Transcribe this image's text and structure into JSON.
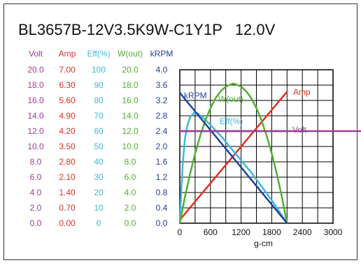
{
  "title": "BL3657B-12V3.5K9W-C1Y1P   12.0V",
  "columns": [
    {
      "key": "volt",
      "header": "Volt",
      "color": "#9b3d9b",
      "ticks": [
        "20.0",
        "18.0",
        "16.0",
        "14.0",
        "12.0",
        "10.0",
        "8.0",
        "6.0",
        "4.0",
        "2.0",
        "0.0"
      ]
    },
    {
      "key": "amp",
      "header": "Amp",
      "color": "#e03020",
      "ticks": [
        "7.00",
        "6.30",
        "5.60",
        "4.90",
        "4.20",
        "3.50",
        "2.80",
        "2.10",
        "1.40",
        "0.70",
        "0.00"
      ]
    },
    {
      "key": "eff",
      "header": "Eff(%)",
      "color": "#40b8d8",
      "ticks": [
        "100",
        "90",
        "80",
        "70",
        "60",
        "50",
        "40",
        "30",
        "20",
        "10",
        "0"
      ]
    },
    {
      "key": "wout",
      "header": "W(out)",
      "color": "#50b030",
      "ticks": [
        "20.0",
        "18.0",
        "16.0",
        "14.0",
        "12.0",
        "10.0",
        "8.0",
        "6.0",
        "4.0",
        "2.0",
        "0.0"
      ]
    },
    {
      "key": "krpm",
      "header": "kRPM",
      "color": "#2040a0",
      "ticks": [
        "4.0",
        "3.6",
        "3.2",
        "2.8",
        "2.4",
        "2.0",
        "1.6",
        "1.2",
        "0.8",
        "0.4",
        "0.0"
      ]
    }
  ],
  "chart_data": {
    "type": "line",
    "xlabel": "g-cm",
    "xlim": [
      0,
      3000
    ],
    "x_ticks": [
      "0",
      "600",
      "1200",
      "1800",
      "2400",
      "3000"
    ],
    "grid": true,
    "series": [
      {
        "name": "Volt",
        "color": "#9b3d9b",
        "axis": "volt",
        "x": [
          0,
          2100
        ],
        "y": [
          12.0,
          12.0
        ]
      },
      {
        "name": "Amp",
        "color": "#e03020",
        "axis": "amp",
        "x": [
          0,
          2100
        ],
        "y": [
          0.15,
          6.0
        ]
      },
      {
        "name": "Eff(%)",
        "color": "#40b8d8",
        "axis": "eff",
        "x": [
          0,
          30,
          60,
          100,
          150,
          200,
          280,
          350,
          450,
          600,
          800,
          1000,
          1200,
          1400,
          1600,
          1800,
          2000,
          2100
        ],
        "y": [
          0,
          22,
          40,
          55,
          64,
          69,
          72,
          71.5,
          69,
          64,
          57,
          49,
          41,
          33,
          24,
          15,
          5,
          0
        ]
      },
      {
        "name": "W(out)",
        "color": "#50b030",
        "axis": "wout",
        "x": [
          0,
          100,
          200,
          300,
          400,
          500,
          600,
          700,
          800,
          900,
          1000,
          1050,
          1100,
          1200,
          1300,
          1400,
          1500,
          1600,
          1700,
          1800,
          1900,
          2000,
          2100
        ],
        "y": [
          0,
          3.4,
          6.4,
          9.1,
          11.4,
          13.4,
          15.0,
          16.3,
          17.2,
          17.8,
          18.1,
          18.2,
          18.1,
          17.8,
          17.2,
          16.3,
          15.0,
          13.4,
          11.4,
          9.1,
          6.4,
          3.4,
          0
        ]
      },
      {
        "name": "kRPM",
        "color": "#2040a0",
        "axis": "krpm",
        "x": [
          0,
          2100
        ],
        "y": [
          3.4,
          0
        ]
      }
    ],
    "annotations": [
      {
        "text": "kRPM",
        "series": "kRPM",
        "color": "#2040a0"
      },
      {
        "text": "W(out)",
        "series": "W(out)",
        "color": "#50b030"
      },
      {
        "text": "Eff(%)",
        "series": "Eff(%)",
        "color": "#40b8d8"
      },
      {
        "text": "Amp",
        "series": "Amp",
        "color": "#e03020"
      },
      {
        "text": "Volt",
        "series": "Volt",
        "color": "#9b3d9b"
      }
    ]
  }
}
